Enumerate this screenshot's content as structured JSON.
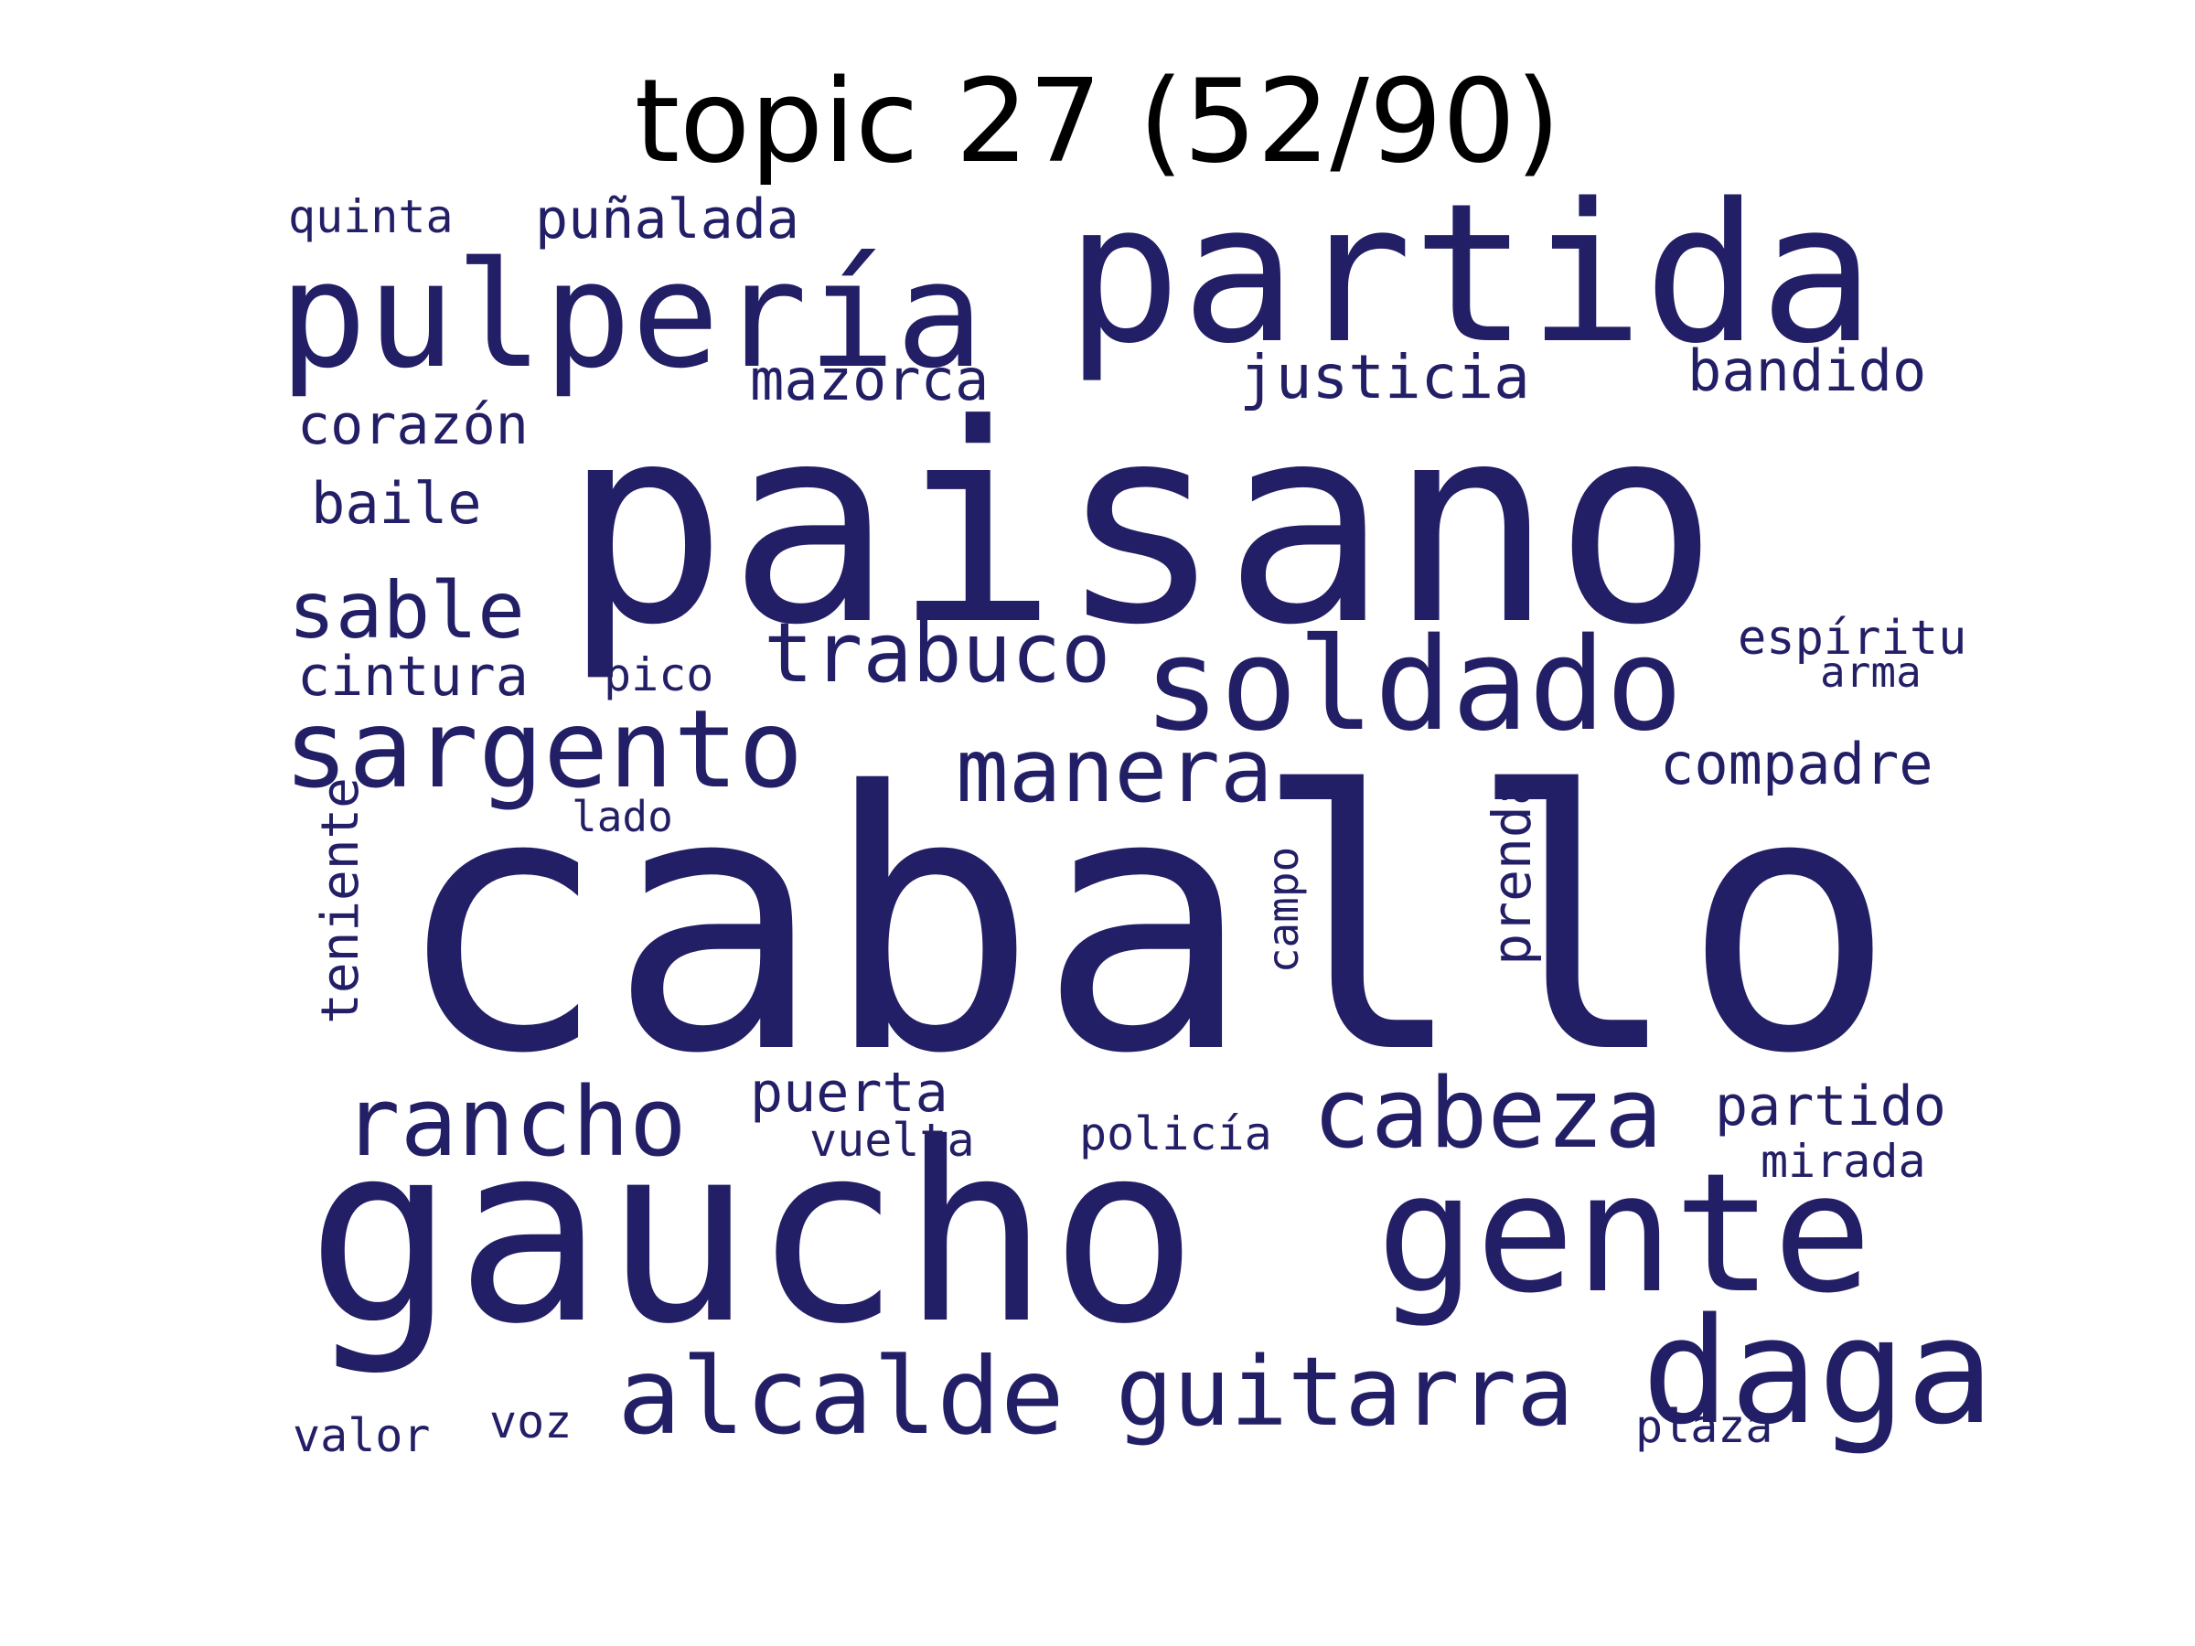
{
  "title": "topic 27 (52/90)",
  "color": "#231f66",
  "words": {
    "caballo": "caballo",
    "paisano": "paisano",
    "gaucho": "gaucho",
    "partida": "partida",
    "pulperia": "pulpería",
    "gente": "gente",
    "soldado": "soldado",
    "sargento": "sargento",
    "daga": "daga",
    "guitarra": "guitarra",
    "alcalde": "alcalde",
    "cabeza": "cabeza",
    "rancho": "rancho",
    "manera": "manera",
    "trabuco": "trabuco",
    "sable": "sable",
    "justicia": "justicia",
    "mazorca": "mazorca",
    "bandido": "bandido",
    "corazon": "corazón",
    "punalada": "puñalada",
    "quinta": "quinta",
    "baile": "baile",
    "cintura": "cintura",
    "pico": "pico",
    "espiritu": "espíritu",
    "arma": "arma",
    "compadre": "compadre",
    "lado": "lado",
    "teniente": "teniente",
    "campo": "campo",
    "prenda": "prenda",
    "puerta": "puerta",
    "vuelta": "vuelta",
    "policia": "policía",
    "partido": "partido",
    "mirada": "mirada",
    "valor": "valor",
    "voz": "voz",
    "plaza": "plaza"
  }
}
